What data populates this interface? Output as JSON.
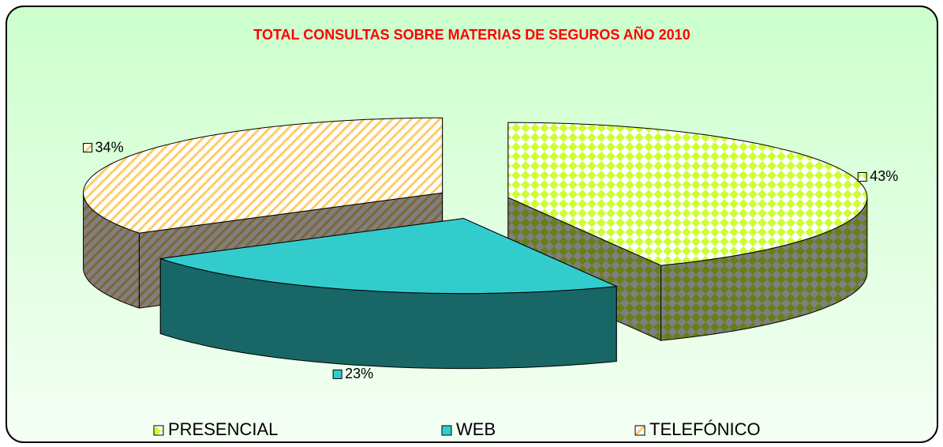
{
  "chart_data": {
    "type": "pie3d",
    "title": "TOTAL CONSULTAS SOBRE MATERIAS DE SEGUROS AÑO 2010",
    "categories": [
      "PRESENCIAL",
      "WEB",
      "TELEFÓNICO"
    ],
    "values": [
      43,
      23,
      34
    ],
    "value_labels": [
      "43%",
      "23%",
      "34%"
    ],
    "colors": [
      "#ccff33",
      "#33cccc",
      "#ffcc66"
    ],
    "legend": "bottom"
  }
}
